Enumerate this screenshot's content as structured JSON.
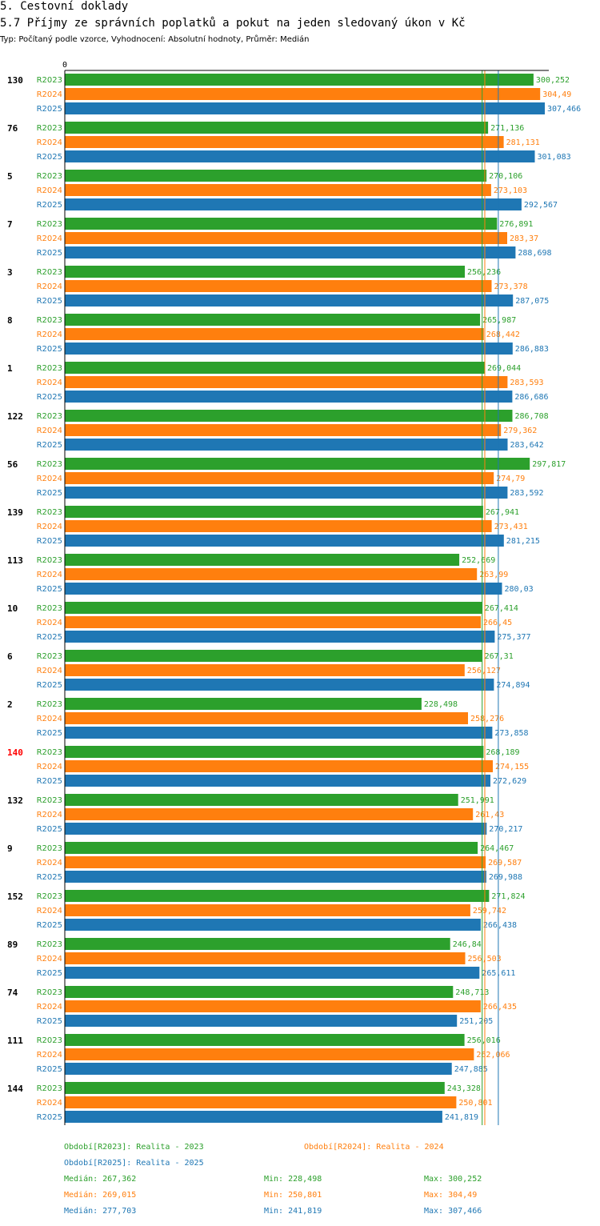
{
  "header": {
    "section": "5. Cestovní doklady",
    "title": "5.7 Příjmy ze správních poplatků a pokut na jeden sledovaný úkon v Kč",
    "subtitle": "Typ: Počítaný podle vzorce, Vyhodnocení: Absolutní hodnoty, Průměr: Medián"
  },
  "colors": {
    "R2023": "#2ca02c",
    "R2024": "#ff7f0e",
    "R2025": "#1f77b4",
    "highlight": "#ff0000",
    "text": "#000000"
  },
  "chart_data": {
    "type": "bar",
    "orientation": "horizontal",
    "axis_zero_label": "0",
    "series_names": [
      "R2023",
      "R2024",
      "R2025"
    ],
    "highlight_category": "140",
    "categories": [
      {
        "name": "130",
        "values": [
          300.252,
          304.49,
          307.466
        ],
        "labels": [
          "300,252",
          "304,49",
          "307,466"
        ]
      },
      {
        "name": "76",
        "values": [
          271.136,
          281.131,
          301.083
        ],
        "labels": [
          "271,136",
          "281,131",
          "301,083"
        ]
      },
      {
        "name": "5",
        "values": [
          270.106,
          273.103,
          292.567
        ],
        "labels": [
          "270,106",
          "273,103",
          "292,567"
        ]
      },
      {
        "name": "7",
        "values": [
          276.891,
          283.37,
          288.698
        ],
        "labels": [
          "276,891",
          "283,37",
          "288,698"
        ]
      },
      {
        "name": "3",
        "values": [
          256.236,
          273.378,
          287.075
        ],
        "labels": [
          "256,236",
          "273,378",
          "287,075"
        ]
      },
      {
        "name": "8",
        "values": [
          265.987,
          268.442,
          286.883
        ],
        "labels": [
          "265,987",
          "268,442",
          "286,883"
        ]
      },
      {
        "name": "1",
        "values": [
          269.044,
          283.593,
          286.686
        ],
        "labels": [
          "269,044",
          "283,593",
          "286,686"
        ]
      },
      {
        "name": "122",
        "values": [
          286.708,
          279.362,
          283.642
        ],
        "labels": [
          "286,708",
          "279,362",
          "283,642"
        ]
      },
      {
        "name": "56",
        "values": [
          297.817,
          274.79,
          283.592
        ],
        "labels": [
          "297,817",
          "274,79",
          "283,592"
        ]
      },
      {
        "name": "139",
        "values": [
          267.941,
          273.431,
          281.215
        ],
        "labels": [
          "267,941",
          "273,431",
          "281,215"
        ]
      },
      {
        "name": "113",
        "values": [
          252.669,
          263.99,
          280.03
        ],
        "labels": [
          "252,669",
          "263,99",
          "280,03"
        ]
      },
      {
        "name": "10",
        "values": [
          267.414,
          266.45,
          275.377
        ],
        "labels": [
          "267,414",
          "266,45",
          "275,377"
        ]
      },
      {
        "name": "6",
        "values": [
          267.31,
          256.127,
          274.894
        ],
        "labels": [
          "267,31",
          "256,127",
          "274,894"
        ]
      },
      {
        "name": "2",
        "values": [
          228.498,
          258.276,
          273.858
        ],
        "labels": [
          "228,498",
          "258,276",
          "273,858"
        ]
      },
      {
        "name": "140",
        "values": [
          268.189,
          274.155,
          272.629
        ],
        "labels": [
          "268,189",
          "274,155",
          "272,629"
        ]
      },
      {
        "name": "132",
        "values": [
          251.991,
          261.43,
          270.217
        ],
        "labels": [
          "251,991",
          "261,43",
          "270,217"
        ]
      },
      {
        "name": "9",
        "values": [
          264.467,
          269.587,
          269.988
        ],
        "labels": [
          "264,467",
          "269,587",
          "269,988"
        ]
      },
      {
        "name": "152",
        "values": [
          271.824,
          259.742,
          266.438
        ],
        "labels": [
          "271,824",
          "259,742",
          "266,438"
        ]
      },
      {
        "name": "89",
        "values": [
          246.84,
          256.503,
          265.611
        ],
        "labels": [
          "246,84",
          "256,503",
          "265,611"
        ]
      },
      {
        "name": "74",
        "values": [
          248.713,
          266.435,
          251.205
        ],
        "labels": [
          "248,713",
          "266,435",
          "251,205"
        ]
      },
      {
        "name": "111",
        "values": [
          256.016,
          262.066,
          247.885
        ],
        "labels": [
          "256,016",
          "262,066",
          "247,885"
        ]
      },
      {
        "name": "144",
        "values": [
          243.328,
          250.801,
          241.819
        ],
        "labels": [
          "243,328",
          "250,801",
          "241,819"
        ]
      }
    ],
    "median_lines": [
      267.362,
      269.015,
      277.703
    ]
  },
  "legend": {
    "r2023": "Období[R2023]: Realita - 2023",
    "r2024": "Období[R2024]: Realita - 2024",
    "r2025": "Období[R2025]: Realita - 2025"
  },
  "stats": [
    {
      "median": "Medián: 267,362",
      "min": "Min: 228,498",
      "max": "Max: 300,252"
    },
    {
      "median": "Medián: 269,015",
      "min": "Min: 250,801",
      "max": "Max: 304,49"
    },
    {
      "median": "Medián: 277,703",
      "min": "Min: 241,819",
      "max": "Max: 307,466"
    }
  ]
}
